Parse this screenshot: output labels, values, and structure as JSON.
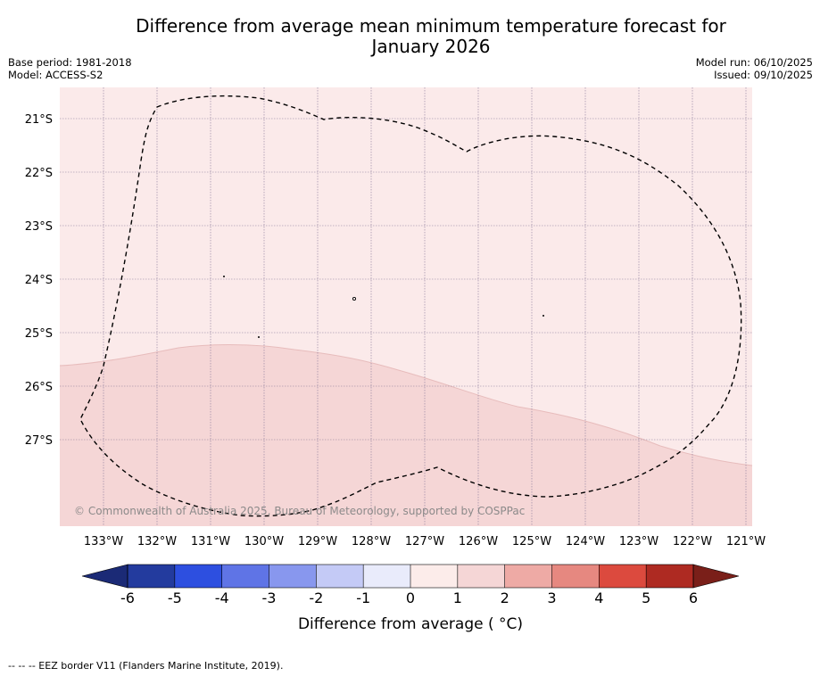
{
  "title": {
    "line1": "Difference from average mean minimum temperature forecast for",
    "line2": "January 2026"
  },
  "meta": {
    "base_period": "Base period: 1981-2018",
    "model": "Model: ACCESS-S2",
    "model_run": "Model run: 06/10/2025",
    "issued": "Issued: 09/10/2025"
  },
  "map": {
    "lat_labels": [
      "21°S",
      "22°S",
      "23°S",
      "24°S",
      "25°S",
      "26°S",
      "27°S"
    ],
    "lon_labels": [
      "133°W",
      "132°W",
      "131°W",
      "130°W",
      "129°W",
      "128°W",
      "127°W",
      "126°W",
      "125°W",
      "124°W",
      "123°W",
      "122°W",
      "121°W"
    ],
    "copyright": "© Commonwealth of Australia 2025, Bureau of Meteorology, supported by COSPPac",
    "zone_colors": {
      "upper": "#fbeaea",
      "lower": "#f5d6d6"
    }
  },
  "colorbar": {
    "tick_labels": [
      "-6",
      "-5",
      "-4",
      "-3",
      "-2",
      "-1",
      "0",
      "1",
      "2",
      "3",
      "4",
      "5",
      "6"
    ],
    "colors": [
      "#233b9e",
      "#2d4fe0",
      "#5f74e6",
      "#8897ee",
      "#c4caf6",
      "#e9ebfb",
      "#fcecea",
      "#f5d6d6",
      "#eeaaa5",
      "#e68880",
      "#dc4a3e",
      "#ae2a22"
    ],
    "under_color": "#1b2a76",
    "over_color": "#7a1f19",
    "label": "Difference from average ( °C)"
  },
  "footnote": "--  --  -- EEZ border V11 (Flanders Marine Institute, 2019)."
}
